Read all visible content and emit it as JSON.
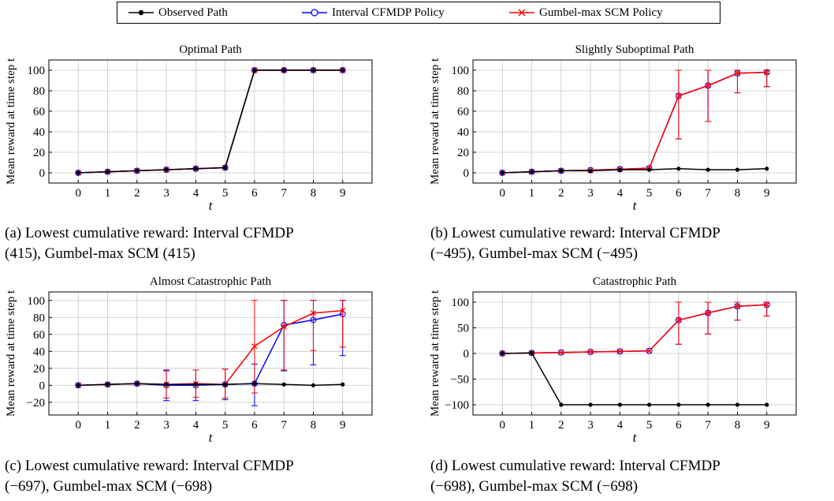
{
  "legend": [
    {
      "label": "Observed Path",
      "color": "#000000",
      "marker": "dot"
    },
    {
      "label": "Interval CFMDP Policy",
      "color": "#0000ff",
      "marker": "circle"
    },
    {
      "label": "Gumbel-max SCM Policy",
      "color": "#ff0000",
      "marker": "x"
    }
  ],
  "captions": [
    {
      "line1": "(a) Lowest cumulative reward: Interval CFMDP",
      "line2": "(415), Gumbel-max SCM (415)"
    },
    {
      "line1": "(b) Lowest cumulative reward: Interval CFMDP",
      "line2": "(−495), Gumbel-max SCM (−495)"
    },
    {
      "line1": "(c) Lowest cumulative reward: Interval CFMDP",
      "line2": "(−697), Gumbel-max SCM (−698)"
    },
    {
      "line1": "(d) Lowest cumulative reward: Interval CFMDP",
      "line2": "(−698), Gumbel-max SCM (−698)"
    }
  ],
  "chart_data": [
    {
      "type": "line",
      "title": "Optimal Path",
      "xlabel": "t",
      "ylabel": "Mean reward at time step t",
      "x": [
        0,
        1,
        2,
        3,
        4,
        5,
        6,
        7,
        8,
        9
      ],
      "xticks": [
        "0",
        "1",
        "2",
        "3",
        "4",
        "5",
        "6",
        "7",
        "8",
        "9"
      ],
      "yticks": [
        0,
        20,
        40,
        60,
        80,
        100
      ],
      "ytick_labels": [
        "0",
        "20",
        "40",
        "60",
        "80",
        "100"
      ],
      "ylim": [
        -10,
        110
      ],
      "grid": true,
      "series": [
        {
          "name": "Observed Path",
          "color": "#000000",
          "values": [
            0,
            1,
            2,
            3,
            4,
            5,
            100,
            100,
            100,
            100
          ]
        },
        {
          "name": "Interval CFMDP Policy",
          "color": "#0000ff",
          "values": [
            0,
            1,
            2,
            3,
            4,
            5,
            100,
            100,
            100,
            100
          ],
          "err_low": [
            0,
            0,
            0,
            0,
            0,
            0,
            0,
            0,
            0,
            0
          ],
          "err_high": [
            0,
            0,
            0,
            0,
            0,
            0,
            0,
            0,
            0,
            0
          ]
        },
        {
          "name": "Gumbel-max SCM Policy",
          "color": "#ff0000",
          "values": [
            0,
            1,
            2,
            3,
            4,
            5,
            100,
            100,
            100,
            100
          ],
          "err_low": [
            0,
            0,
            0,
            0,
            0,
            0,
            0,
            0,
            0,
            0
          ],
          "err_high": [
            0,
            0,
            0,
            0,
            0,
            0,
            0,
            0,
            0,
            0
          ]
        }
      ]
    },
    {
      "type": "line",
      "title": "Slightly Suboptimal Path",
      "xlabel": "t",
      "ylabel": "Mean reward at time step t",
      "x": [
        0,
        1,
        2,
        3,
        4,
        5,
        6,
        7,
        8,
        9
      ],
      "xticks": [
        "0",
        "1",
        "2",
        "3",
        "4",
        "5",
        "6",
        "7",
        "8",
        "9"
      ],
      "yticks": [
        0,
        20,
        40,
        60,
        80,
        100
      ],
      "ytick_labels": [
        "0",
        "20",
        "40",
        "60",
        "80",
        "100"
      ],
      "ylim": [
        -10,
        110
      ],
      "grid": true,
      "series": [
        {
          "name": "Observed Path",
          "color": "#000000",
          "values": [
            0,
            1,
            2,
            2,
            3,
            3,
            4,
            3,
            3,
            4
          ]
        },
        {
          "name": "Interval CFMDP Policy",
          "color": "#0000ff",
          "values": [
            0,
            1,
            2,
            2.5,
            3.5,
            4.5,
            75,
            85,
            97,
            98
          ],
          "err_low": [
            0,
            0,
            0,
            0,
            0,
            0,
            33,
            50,
            78,
            84
          ],
          "err_high": [
            0,
            0,
            0,
            0,
            0,
            0,
            100,
            100,
            100,
            100
          ]
        },
        {
          "name": "Gumbel-max SCM Policy",
          "color": "#ff0000",
          "values": [
            0,
            1,
            2,
            2.5,
            3.5,
            4.5,
            75,
            85,
            97,
            98
          ],
          "err_low": [
            0,
            0,
            0,
            0,
            0,
            0,
            33,
            50,
            78,
            84
          ],
          "err_high": [
            0,
            0,
            0,
            0,
            0,
            0,
            100,
            100,
            100,
            100
          ]
        }
      ]
    },
    {
      "type": "line",
      "title": "Almost Catastrophic Path",
      "xlabel": "t",
      "ylabel": "Mean reward at time step t",
      "x": [
        0,
        1,
        2,
        3,
        4,
        5,
        6,
        7,
        8,
        9
      ],
      "xticks": [
        "0",
        "1",
        "2",
        "3",
        "4",
        "5",
        "6",
        "7",
        "8",
        "9"
      ],
      "yticks": [
        -20,
        0,
        20,
        40,
        60,
        80,
        100
      ],
      "ytick_labels": [
        "−20",
        "0",
        "20",
        "40",
        "60",
        "80",
        "100"
      ],
      "ylim": [
        -35,
        110
      ],
      "grid": true,
      "series": [
        {
          "name": "Observed Path",
          "color": "#000000",
          "values": [
            0,
            1,
            2,
            1,
            1,
            1,
            2,
            1,
            0,
            1
          ]
        },
        {
          "name": "Interval CFMDP Policy",
          "color": "#0000ff",
          "values": [
            0,
            1,
            2,
            0,
            0,
            1,
            2,
            71,
            77,
            84
          ],
          "err_low": [
            0,
            0,
            0,
            -18,
            -18,
            -17,
            -24,
            17,
            24,
            35
          ],
          "err_high": [
            0,
            0,
            0,
            18,
            18,
            19,
            25,
            100,
            100,
            100
          ]
        },
        {
          "name": "Gumbel-max SCM Policy",
          "color": "#ff0000",
          "values": [
            0,
            1,
            2,
            1,
            2,
            1,
            46,
            69,
            85,
            88
          ],
          "err_low": [
            0,
            0,
            0,
            -15,
            -14,
            -15,
            -9,
            18,
            41,
            45
          ],
          "err_high": [
            0,
            0,
            0,
            17,
            18,
            19,
            100,
            100,
            100,
            100
          ]
        }
      ]
    },
    {
      "type": "line",
      "title": "Catastrophic Path",
      "xlabel": "t",
      "ylabel": "Mean reward at time step t",
      "x": [
        0,
        1,
        2,
        3,
        4,
        5,
        6,
        7,
        8,
        9
      ],
      "xticks": [
        "0",
        "1",
        "2",
        "3",
        "4",
        "5",
        "6",
        "7",
        "8",
        "9"
      ],
      "yticks": [
        -100,
        -50,
        0,
        50,
        100
      ],
      "ytick_labels": [
        "−100",
        "−50",
        "0",
        "50",
        "100"
      ],
      "ylim": [
        -120,
        120
      ],
      "grid": true,
      "series": [
        {
          "name": "Observed Path",
          "color": "#000000",
          "values": [
            0,
            1,
            -100,
            -100,
            -100,
            -100,
            -100,
            -100,
            -100,
            -100
          ]
        },
        {
          "name": "Interval CFMDP Policy",
          "color": "#0000ff",
          "values": [
            0,
            1,
            2,
            3,
            4,
            5,
            65,
            79,
            92,
            95
          ],
          "err_low": [
            0,
            0,
            0,
            0,
            0,
            0,
            18,
            38,
            65,
            73
          ],
          "err_high": [
            0,
            0,
            0,
            0,
            0,
            0,
            100,
            100,
            100,
            100
          ]
        },
        {
          "name": "Gumbel-max SCM Policy",
          "color": "#ff0000",
          "values": [
            0,
            1,
            2,
            3,
            4,
            5,
            65,
            79,
            92,
            95
          ],
          "err_low": [
            0,
            0,
            0,
            0,
            0,
            0,
            18,
            38,
            65,
            73
          ],
          "err_high": [
            0,
            0,
            0,
            0,
            0,
            0,
            100,
            100,
            100,
            100
          ]
        }
      ]
    }
  ]
}
